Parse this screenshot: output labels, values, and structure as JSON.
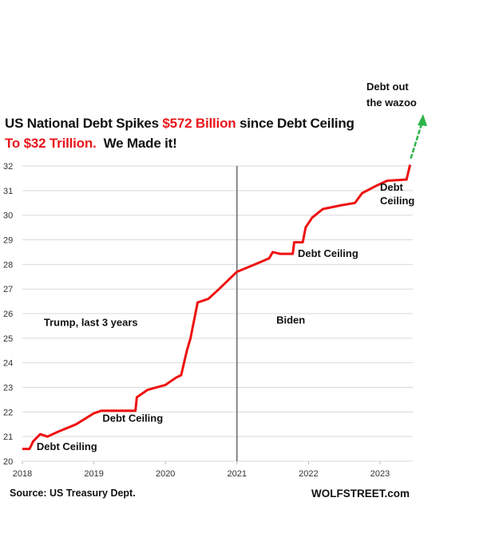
{
  "title": {
    "line1_a": "US National Debt Spikes ",
    "line1_b": "$572 Billion",
    "line1_c": " since Debt Ceiling",
    "line2_a": "To $32 Trillion.",
    "line2_b": "  We Made it!"
  },
  "footer": {
    "source": "Source: US Treasury Dept.",
    "brand": "WOLFSTREET.com"
  },
  "colors": {
    "line": "#ee1111",
    "highlight": "#e8161b",
    "arrow": "#2db34a",
    "grid": "#d9d9d9",
    "divider": "#444444"
  },
  "chart_data": {
    "type": "line",
    "title": "US National Debt Spikes $572 Billion since Debt Ceiling To $32 Trillion. We Made it!",
    "xlabel": "",
    "ylabel": "",
    "xlim": [
      2018,
      2023.55
    ],
    "ylim": [
      20,
      32
    ],
    "xticks": [
      "2018",
      "2019",
      "2020",
      "2021",
      "2022",
      "2023"
    ],
    "yticks": [
      "20",
      "21",
      "22",
      "23",
      "24",
      "25",
      "26",
      "27",
      "28",
      "29",
      "30",
      "31",
      "32"
    ],
    "grid": true,
    "series": [
      {
        "x": [
          2018.0,
          2018.1,
          2018.15,
          2018.25,
          2018.35,
          2018.5,
          2018.75,
          2019.0,
          2019.1,
          2019.58,
          2019.6,
          2019.75,
          2020.0,
          2020.15,
          2020.22,
          2020.3,
          2020.35,
          2020.45,
          2020.6,
          2020.75,
          2021.0,
          2021.25,
          2021.45,
          2021.5,
          2021.6,
          2021.78,
          2021.8,
          2021.92,
          2021.96,
          2022.05,
          2022.2,
          2022.45,
          2022.65,
          2022.75,
          2022.95,
          2023.1,
          2023.37,
          2023.4,
          2023.42
        ],
        "y": [
          20.5,
          20.5,
          20.8,
          21.1,
          21.0,
          21.2,
          21.5,
          21.95,
          22.05,
          22.05,
          22.6,
          22.9,
          23.1,
          23.4,
          23.5,
          24.5,
          25.0,
          26.45,
          26.6,
          27.0,
          27.7,
          28.0,
          28.25,
          28.5,
          28.43,
          28.43,
          28.9,
          28.9,
          29.5,
          29.9,
          30.25,
          30.4,
          30.5,
          30.9,
          31.2,
          31.4,
          31.45,
          31.8,
          32.05
        ]
      }
    ],
    "vertical_line": {
      "x": 2021
    },
    "annotations": [
      {
        "text": "Debt Ceiling",
        "x": 2018.2,
        "y": 20.45
      },
      {
        "text": "Debt Ceiling",
        "x": 2019.12,
        "y": 21.6
      },
      {
        "text": "Trump, last 3 years",
        "x": 2018.3,
        "y": 25.5
      },
      {
        "text": "Biden",
        "x": 2021.55,
        "y": 25.6
      },
      {
        "text": "Debt Ceiling",
        "x": 2021.85,
        "y": 28.3
      },
      {
        "text": "Debt",
        "x": 2023.0,
        "y": 31.0
      },
      {
        "text": "Ceiling",
        "x": 2023.0,
        "y": 30.45
      },
      {
        "text": "Debt out",
        "x": 2023.5,
        "y": 35.2
      },
      {
        "text": "the wazoo",
        "x": 2023.5,
        "y": 34.6
      }
    ]
  }
}
